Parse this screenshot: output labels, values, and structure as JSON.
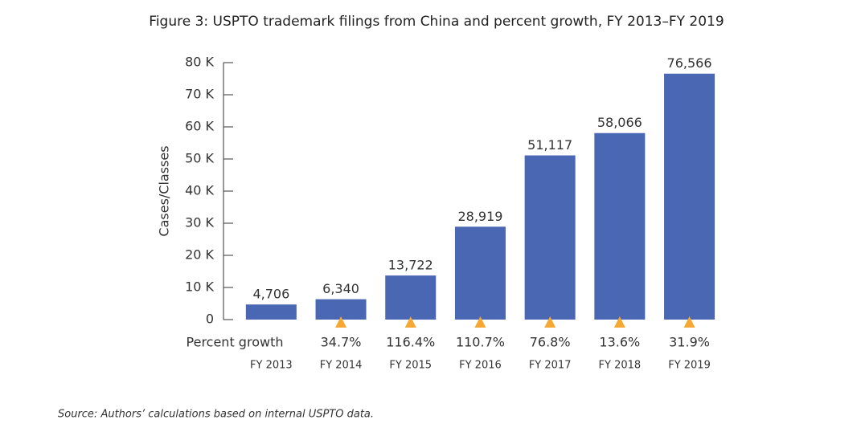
{
  "chart_data": {
    "type": "bar",
    "title": "Figure 3: USPTO trademark filings from China and percent growth, FY 2013–FY 2019",
    "y_label": "Cases/Classes",
    "categories": [
      "FY 2013",
      "FY 2014",
      "FY 2015",
      "FY 2016",
      "FY 2017",
      "FY 2018",
      "FY 2019"
    ],
    "values": [
      4706,
      6340,
      13722,
      28919,
      51117,
      58066,
      76566
    ],
    "value_labels": [
      "4,706",
      "6,340",
      "13,722",
      "28,919",
      "51,117",
      "58,066",
      "76,566"
    ],
    "color": "#4a67b3",
    "ylim": [
      0,
      80000
    ],
    "yticks": [
      0,
      {
        "value": 10000,
        "label": "10 K"
      },
      {
        "value": 20000,
        "label": "20 K"
      },
      {
        "value": 30000,
        "label": "30 K"
      },
      {
        "value": 40000,
        "label": "40 K"
      },
      {
        "value": 50000,
        "label": "50 K"
      },
      {
        "value": 60000,
        "label": "60 K"
      },
      {
        "value": 70000,
        "label": "70 K"
      },
      {
        "value": 80000,
        "label": "80 K"
      }
    ],
    "growth": {
      "label": "Percent growth",
      "color": "#f5a833",
      "values": [
        null,
        34.7,
        116.4,
        110.7,
        76.8,
        13.6,
        31.9
      ],
      "value_labels": [
        null,
        "34.7%",
        "116.4%",
        "110.7%",
        "76.8%",
        "13.6%",
        "31.9%"
      ]
    },
    "source": "Source: Authors’ calculations based on internal USPTO data."
  }
}
